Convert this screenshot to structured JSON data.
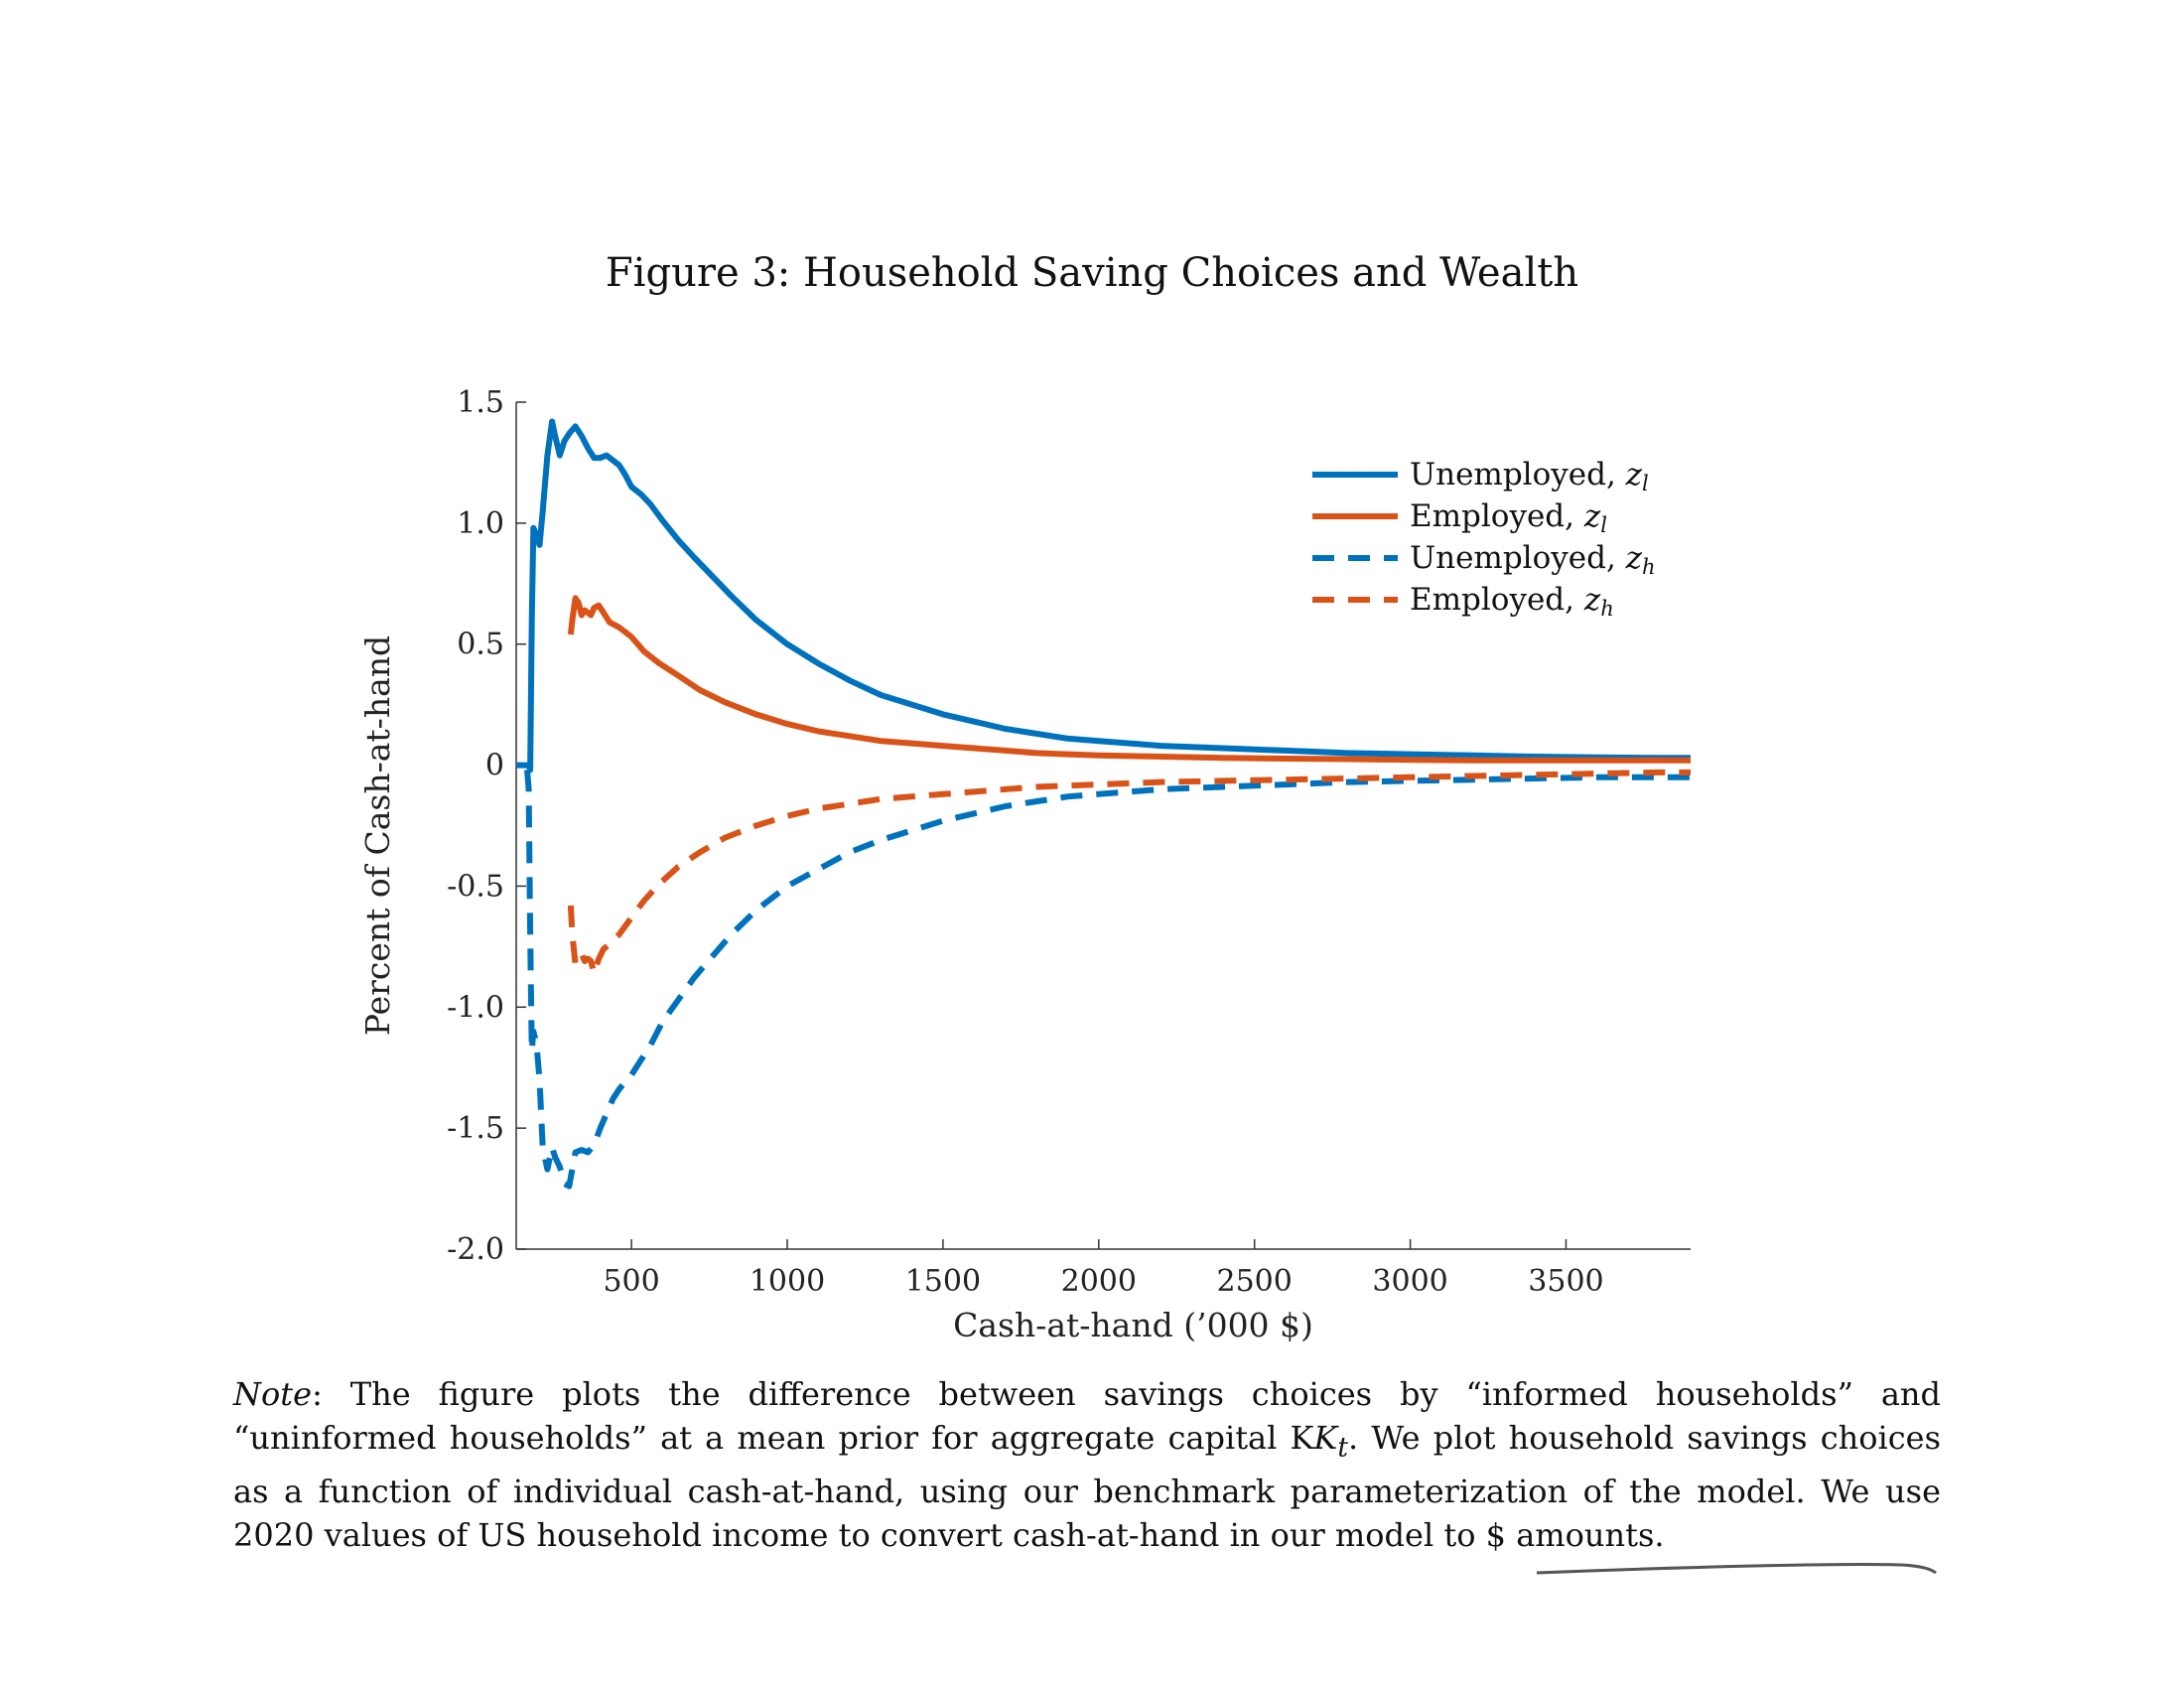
{
  "figure": {
    "title": "Figure 3: Household Saving Choices and Wealth"
  },
  "chart_data": {
    "type": "line",
    "xlabel": "Cash-at-hand (’000 $)",
    "ylabel": "Percent of Cash-at-hand",
    "xlim": [
      130,
      3900
    ],
    "ylim": [
      -2.0,
      1.5
    ],
    "xticks": [
      500,
      1000,
      1500,
      2000,
      2500,
      3000,
      3500
    ],
    "yticks": [
      {
        "value": 1.5,
        "label": "1.5"
      },
      {
        "value": 1.0,
        "label": "1.0"
      },
      {
        "value": 0.5,
        "label": "0.5"
      },
      {
        "value": 0.0,
        "label": "0"
      },
      {
        "value": -0.5,
        "label": "-0.5"
      },
      {
        "value": -1.0,
        "label": "-1.0"
      },
      {
        "value": -1.5,
        "label": "-1.5"
      },
      {
        "value": -2.0,
        "label": "-2.0"
      }
    ],
    "grid": false,
    "legend_position": "top-right",
    "series": [
      {
        "name": "Unemployed, z_l",
        "legend_main": "Unemployed, ",
        "legend_sub": "l",
        "color": "#0072BD",
        "dash": "solid",
        "x": [
          130,
          170,
          175,
          180,
          185,
          195,
          205,
          215,
          230,
          245,
          255,
          270,
          285,
          300,
          320,
          340,
          360,
          380,
          400,
          420,
          440,
          460,
          480,
          500,
          530,
          560,
          600,
          650,
          700,
          760,
          820,
          900,
          1000,
          1100,
          1200,
          1300,
          1400,
          1500,
          1600,
          1700,
          1800,
          1900,
          2000,
          2200,
          2400,
          2600,
          2800,
          3000,
          3200,
          3400,
          3600,
          3800,
          3900
        ],
        "y": [
          0.0,
          0.0,
          -0.02,
          0.6,
          0.98,
          0.95,
          0.91,
          1.05,
          1.28,
          1.42,
          1.36,
          1.28,
          1.34,
          1.37,
          1.4,
          1.36,
          1.31,
          1.27,
          1.27,
          1.28,
          1.26,
          1.24,
          1.2,
          1.15,
          1.12,
          1.08,
          1.01,
          0.93,
          0.86,
          0.78,
          0.7,
          0.6,
          0.5,
          0.42,
          0.35,
          0.29,
          0.25,
          0.21,
          0.18,
          0.15,
          0.13,
          0.11,
          0.1,
          0.08,
          0.07,
          0.06,
          0.05,
          0.045,
          0.04,
          0.035,
          0.032,
          0.03,
          0.03
        ]
      },
      {
        "name": "Employed, z_l",
        "legend_main": "Employed, ",
        "legend_sub": "l",
        "color": "#D95319",
        "dash": "solid",
        "x": [
          305,
          310,
          320,
          330,
          340,
          350,
          360,
          370,
          380,
          395,
          410,
          430,
          460,
          500,
          540,
          590,
          650,
          720,
          800,
          900,
          1000,
          1100,
          1200,
          1300,
          1400,
          1500,
          1600,
          1700,
          1800,
          1900,
          2000,
          2200,
          2400,
          2600,
          2800,
          3000,
          3200,
          3400,
          3600,
          3800,
          3900
        ],
        "y": [
          0.54,
          0.6,
          0.69,
          0.67,
          0.62,
          0.64,
          0.63,
          0.62,
          0.65,
          0.66,
          0.63,
          0.59,
          0.57,
          0.53,
          0.47,
          0.42,
          0.37,
          0.31,
          0.26,
          0.21,
          0.17,
          0.14,
          0.12,
          0.1,
          0.09,
          0.08,
          0.07,
          0.06,
          0.05,
          0.045,
          0.04,
          0.035,
          0.03,
          0.027,
          0.025,
          0.022,
          0.02,
          0.02,
          0.02,
          0.02,
          0.02
        ]
      },
      {
        "name": "Unemployed, z_h",
        "legend_main": "Unemployed, ",
        "legend_sub": "h",
        "color": "#0072BD",
        "dash": "dashed",
        "x": [
          165,
          170,
          175,
          180,
          185,
          195,
          205,
          215,
          230,
          245,
          255,
          270,
          285,
          300,
          320,
          340,
          360,
          380,
          400,
          420,
          440,
          460,
          480,
          500,
          530,
          560,
          600,
          650,
          700,
          760,
          820,
          900,
          1000,
          1100,
          1200,
          1300,
          1400,
          1500,
          1600,
          1700,
          1800,
          1900,
          2000,
          2200,
          2400,
          2600,
          2800,
          3000,
          3200,
          3400,
          3600,
          3800,
          3900
        ],
        "y": [
          -0.02,
          -0.1,
          -0.7,
          -1.18,
          -1.1,
          -1.15,
          -1.3,
          -1.58,
          -1.67,
          -1.58,
          -1.62,
          -1.66,
          -1.73,
          -1.74,
          -1.6,
          -1.59,
          -1.6,
          -1.57,
          -1.5,
          -1.44,
          -1.38,
          -1.34,
          -1.31,
          -1.28,
          -1.22,
          -1.16,
          -1.06,
          -0.97,
          -0.88,
          -0.79,
          -0.7,
          -0.6,
          -0.5,
          -0.43,
          -0.36,
          -0.31,
          -0.27,
          -0.23,
          -0.2,
          -0.17,
          -0.15,
          -0.13,
          -0.12,
          -0.1,
          -0.09,
          -0.08,
          -0.07,
          -0.065,
          -0.06,
          -0.055,
          -0.05,
          -0.05,
          -0.05
        ]
      },
      {
        "name": "Employed, z_h",
        "legend_main": "Employed, ",
        "legend_sub": "h",
        "color": "#D95319",
        "dash": "dashed",
        "x": [
          305,
          310,
          320,
          330,
          340,
          350,
          360,
          370,
          380,
          395,
          410,
          430,
          460,
          500,
          540,
          590,
          650,
          720,
          800,
          900,
          1000,
          1100,
          1200,
          1300,
          1400,
          1500,
          1600,
          1700,
          1800,
          1900,
          2000,
          2200,
          2400,
          2600,
          2800,
          3000,
          3200,
          3400,
          3600,
          3800,
          3900
        ],
        "y": [
          -0.58,
          -0.7,
          -0.82,
          -0.8,
          -0.78,
          -0.81,
          -0.8,
          -0.81,
          -0.86,
          -0.8,
          -0.76,
          -0.74,
          -0.7,
          -0.63,
          -0.56,
          -0.49,
          -0.42,
          -0.36,
          -0.3,
          -0.25,
          -0.21,
          -0.18,
          -0.16,
          -0.14,
          -0.13,
          -0.12,
          -0.11,
          -0.1,
          -0.09,
          -0.085,
          -0.08,
          -0.07,
          -0.065,
          -0.06,
          -0.055,
          -0.05,
          -0.045,
          -0.04,
          -0.035,
          -0.03,
          -0.03
        ]
      }
    ]
  },
  "note": {
    "label": "Note",
    "text": ": The figure plots the difference between savings choices by “informed households” and “uninformed households” at a mean prior for aggregate capital K",
    "subscript": "t",
    "text_after": ". We plot household savings choices as a function of individual cash-at-hand, using our benchmark parameterization of the model. We use 2020 values of US household income to convert cash-at-hand in our model to $ amounts."
  }
}
